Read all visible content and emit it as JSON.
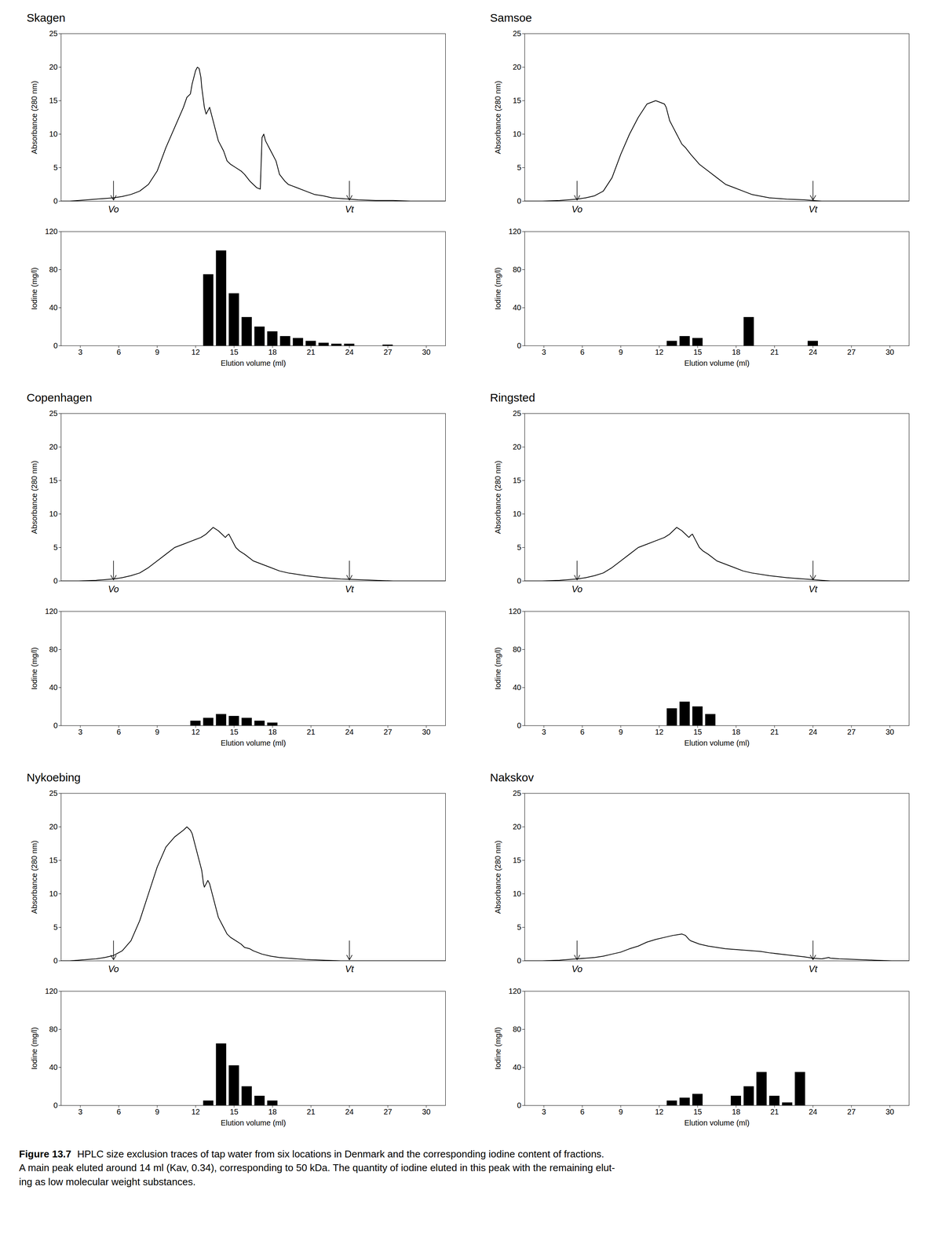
{
  "caption_title": "Figure 13.7",
  "caption": "HPLC size exclusion traces of tap water from six locations in Denmark and the corresponding iodine content of fractions.\nA main peak eluted around 14 ml (Kav, 0.34), corresponding to 50 kDa. The quantity of iodine eluted in this peak with the remaining elut-\ning as low molecular weight substances.",
  "chart_data": [
    {
      "type": "line",
      "title": "Skagen",
      "color": "#000000",
      "x": [
        6.0,
        6.5,
        7.0,
        7.5,
        8.0,
        8.5,
        9.0,
        9.5,
        10.0,
        10.5,
        11.0,
        11.5,
        12.0,
        12.5,
        13.0,
        13.2,
        13.4,
        13.5,
        13.6,
        13.7,
        13.8,
        13.9,
        14.0,
        14.05,
        14.1,
        14.15,
        14.2,
        14.3,
        14.4,
        14.5,
        14.6,
        14.7,
        14.8,
        14.9,
        15.0,
        15.1,
        15.2,
        15.3,
        15.5,
        15.7,
        16.0,
        16.3,
        16.5,
        16.8,
        17.0,
        17.2,
        17.4,
        17.5,
        17.6,
        17.7,
        17.8,
        17.9,
        18.0,
        18.1,
        18.2,
        18.3,
        18.4,
        18.5,
        18.8,
        19.0,
        19.5,
        20.0,
        20.5,
        21.0,
        21.5,
        22.0,
        22.5,
        23.0,
        24.0,
        25.0,
        26.0,
        27.0,
        28.0
      ],
      "values": [
        0.0,
        0.0,
        0.1,
        0.2,
        0.3,
        0.4,
        0.5,
        0.7,
        1.0,
        1.5,
        2.5,
        4.5,
        8.0,
        11.0,
        14.0,
        15.5,
        16.0,
        17.5,
        18.5,
        19.5,
        20.0,
        19.8,
        18.5,
        17.0,
        16.0,
        15.0,
        14.0,
        13.0,
        13.5,
        14.0,
        13.0,
        12.0,
        11.0,
        10.0,
        9.0,
        8.5,
        8.0,
        7.5,
        6.0,
        5.5,
        5.0,
        4.5,
        4.0,
        3.0,
        2.5,
        2.0,
        1.8,
        9.5,
        10.0,
        9.0,
        8.5,
        8.0,
        7.5,
        7.0,
        6.5,
        6.0,
        5.0,
        4.0,
        3.0,
        2.5,
        2.0,
        1.5,
        1.0,
        0.8,
        0.5,
        0.4,
        0.3,
        0.2,
        0.1,
        0.1,
        0.0,
        0.0,
        0.0
      ],
      "xlim": [
        6,
        28
      ],
      "tick_labels": "y",
      "ylim": [
        0,
        25
      ],
      "yticks": [
        0,
        5,
        10,
        15,
        20,
        25
      ],
      "ylabel": "Absorbance (280 nm)",
      "annotations": [
        {
          "x": 9.0,
          "y": 3.0,
          "y_end": 0.15,
          "text": "Vo"
        },
        {
          "x": 22.5,
          "y": 3.0,
          "y_end": 0.15,
          "text": "Vt"
        }
      ]
    },
    {
      "type": "bar",
      "color": "#000000",
      "x": [
        12,
        13,
        14,
        15,
        16,
        17,
        18,
        19,
        20,
        21,
        22,
        23,
        24,
        27
      ],
      "values": [
        0,
        75,
        100,
        55,
        30,
        20,
        15,
        10,
        8,
        5,
        3,
        2,
        2,
        1
      ],
      "xlim": [
        1.5,
        31.5
      ],
      "xticks": [
        3,
        6,
        9,
        12,
        15,
        18,
        21,
        24,
        27,
        30
      ],
      "xlabel": "Elution volume (ml)",
      "ylim": [
        0,
        120
      ],
      "yticks": [
        0,
        40,
        80,
        120
      ],
      "ylabel": "Iodine (mg/l)"
    },
    {
      "type": "line",
      "title": "Samsoe",
      "color": "#000000",
      "x": [
        6.0,
        7.0,
        8.0,
        9.0,
        9.5,
        10.0,
        10.5,
        11.0,
        11.5,
        12.0,
        12.5,
        13.0,
        13.5,
        14.0,
        14.1,
        14.2,
        14.3,
        14.5,
        14.7,
        14.9,
        15.0,
        15.2,
        15.5,
        16.0,
        16.5,
        17.0,
        17.5,
        18.0,
        18.5,
        19.0,
        20.0,
        21.0,
        22.0,
        22.5,
        23.0,
        23.5,
        24.0,
        25.0,
        26.0,
        27.0,
        28.0
      ],
      "values": [
        0.0,
        0.0,
        0.1,
        0.3,
        0.5,
        0.8,
        1.5,
        3.5,
        7.0,
        10.0,
        12.5,
        14.5,
        15.0,
        14.5,
        14.0,
        13.0,
        12.0,
        11.0,
        10.0,
        9.0,
        8.5,
        8.0,
        7.0,
        5.5,
        4.5,
        3.5,
        2.5,
        2.0,
        1.5,
        1.0,
        0.5,
        0.3,
        0.2,
        0.1,
        0.0,
        0.0,
        0.0,
        0.0,
        0.0,
        0.0,
        0.0
      ],
      "xlim": [
        6,
        28
      ],
      "tick_labels": "y",
      "ylim": [
        0,
        25
      ],
      "yticks": [
        0,
        5,
        10,
        15,
        20,
        25
      ],
      "ylabel": "Absorbance (280 nm)",
      "annotations": [
        {
          "x": 9.0,
          "y": 3.0,
          "y_end": 0.15,
          "text": "Vo"
        },
        {
          "x": 22.5,
          "y": 3.0,
          "y_end": 0.15,
          "text": "Vt"
        }
      ]
    },
    {
      "type": "bar",
      "color": "#000000",
      "x": [
        12,
        13,
        14,
        15,
        19,
        24
      ],
      "values": [
        0,
        5,
        10,
        8,
        30,
        5
      ],
      "xlim": [
        1.5,
        31.5
      ],
      "xticks": [
        3,
        6,
        9,
        12,
        15,
        18,
        21,
        24,
        27,
        30
      ],
      "xlabel": "Elution volume (ml)",
      "ylim": [
        0,
        120
      ],
      "yticks": [
        0,
        40,
        80,
        120
      ],
      "ylabel": "Iodine (mg/l)"
    },
    {
      "type": "line",
      "title": "Copenhagen",
      "color": "#000000",
      "x": [
        6.0,
        7.0,
        8.0,
        8.5,
        9.0,
        9.5,
        10.0,
        10.5,
        11.0,
        11.5,
        12.0,
        12.5,
        13.0,
        13.5,
        14.0,
        14.3,
        14.5,
        14.7,
        15.0,
        15.2,
        15.4,
        15.5,
        15.6,
        15.7,
        15.8,
        15.9,
        16.0,
        16.2,
        16.5,
        17.0,
        17.5,
        18.0,
        18.5,
        19.0,
        20.0,
        21.0,
        22.0,
        23.0,
        24.0,
        25.0,
        26.0,
        27.0,
        28.0
      ],
      "values": [
        0.0,
        0.0,
        0.1,
        0.2,
        0.3,
        0.5,
        0.8,
        1.2,
        2.0,
        3.0,
        4.0,
        5.0,
        5.5,
        6.0,
        6.5,
        7.0,
        7.5,
        8.0,
        7.5,
        7.0,
        6.5,
        6.8,
        7.0,
        6.5,
        6.0,
        5.5,
        5.0,
        4.5,
        4.0,
        3.0,
        2.5,
        2.0,
        1.5,
        1.2,
        0.8,
        0.5,
        0.3,
        0.2,
        0.1,
        0.0,
        0.0,
        0.0,
        0.0
      ],
      "xlim": [
        6,
        28
      ],
      "tick_labels": "y",
      "ylim": [
        0,
        25
      ],
      "yticks": [
        0,
        5,
        10,
        15,
        20,
        25
      ],
      "ylabel": "Absorbance (280 nm)",
      "annotations": [
        {
          "x": 9.0,
          "y": 3.0,
          "y_end": 0.15,
          "text": "Vo"
        },
        {
          "x": 22.5,
          "y": 3.0,
          "y_end": 0.15,
          "text": "Vt"
        }
      ]
    },
    {
      "type": "bar",
      "color": "#000000",
      "x": [
        12,
        13,
        14,
        15,
        16,
        17,
        18
      ],
      "values": [
        5,
        8,
        12,
        10,
        8,
        5,
        3
      ],
      "xlim": [
        1.5,
        31.5
      ],
      "xticks": [
        3,
        6,
        9,
        12,
        15,
        18,
        21,
        24,
        27,
        30
      ],
      "xlabel": "Elution volume (ml)",
      "ylim": [
        0,
        120
      ],
      "yticks": [
        0,
        40,
        80,
        120
      ],
      "ylabel": "Iodine (mg/l)"
    },
    {
      "type": "line",
      "title": "Ringsted",
      "color": "#000000",
      "x": [
        6.0,
        7.0,
        8.0,
        8.5,
        9.0,
        9.5,
        10.0,
        10.5,
        11.0,
        11.5,
        12.0,
        12.5,
        13.0,
        13.5,
        14.0,
        14.3,
        14.5,
        14.7,
        15.0,
        15.2,
        15.4,
        15.5,
        15.6,
        15.7,
        15.8,
        15.9,
        16.0,
        16.2,
        16.5,
        17.0,
        17.5,
        18.0,
        18.5,
        19.0,
        20.0,
        21.0,
        22.0,
        22.5,
        23.0,
        23.5,
        24.0,
        25.0,
        26.0,
        27.0,
        28.0
      ],
      "values": [
        0.0,
        0.0,
        0.1,
        0.2,
        0.3,
        0.5,
        0.8,
        1.2,
        2.0,
        3.0,
        4.0,
        5.0,
        5.5,
        6.0,
        6.5,
        7.0,
        7.5,
        8.0,
        7.5,
        7.0,
        6.5,
        6.8,
        7.0,
        6.5,
        6.0,
        5.5,
        5.0,
        4.5,
        4.0,
        3.0,
        2.5,
        2.0,
        1.5,
        1.2,
        0.8,
        0.5,
        0.3,
        0.2,
        0.1,
        0.0,
        0.0,
        0.0,
        0.0,
        0.0,
        0.0
      ],
      "xlim": [
        6,
        28
      ],
      "tick_labels": "y",
      "ylim": [
        0,
        25
      ],
      "yticks": [
        0,
        5,
        10,
        15,
        20,
        25
      ],
      "ylabel": "Absorbance (280 nm)",
      "annotations": [
        {
          "x": 9.0,
          "y": 3.0,
          "y_end": 0.15,
          "text": "Vo"
        },
        {
          "x": 22.5,
          "y": 3.0,
          "y_end": 0.15,
          "text": "Vt"
        }
      ]
    },
    {
      "type": "bar",
      "color": "#000000",
      "x": [
        13,
        14,
        15,
        16
      ],
      "values": [
        18,
        25,
        20,
        12
      ],
      "xlim": [
        1.5,
        31.5
      ],
      "xticks": [
        3,
        6,
        9,
        12,
        15,
        18,
        21,
        24,
        27,
        30
      ],
      "xlabel": "Elution volume (ml)",
      "ylim": [
        0,
        120
      ],
      "yticks": [
        0,
        40,
        80,
        120
      ],
      "ylabel": "Iodine (mg/l)"
    },
    {
      "type": "line",
      "title": "Nykoebing",
      "color": "#000000",
      "x": [
        6.0,
        6.5,
        7.0,
        7.5,
        8.0,
        8.5,
        9.0,
        9.5,
        10.0,
        10.5,
        11.0,
        11.5,
        12.0,
        12.5,
        13.0,
        13.2,
        13.4,
        13.5,
        13.6,
        13.7,
        13.8,
        13.9,
        14.0,
        14.05,
        14.1,
        14.15,
        14.2,
        14.3,
        14.4,
        14.5,
        14.6,
        14.7,
        14.8,
        14.9,
        15.0,
        15.1,
        15.2,
        15.3,
        15.5,
        15.7,
        16.0,
        16.3,
        16.5,
        16.8,
        17.0,
        17.5,
        18.0,
        18.5,
        19.0,
        19.5,
        20.0,
        21.0,
        22.0,
        22.5,
        23.0,
        23.5,
        24.0,
        25.0,
        26.0,
        27.0,
        28.0
      ],
      "values": [
        0.0,
        0.0,
        0.1,
        0.2,
        0.3,
        0.5,
        0.8,
        1.5,
        3.0,
        6.0,
        10.0,
        14.0,
        17.0,
        18.5,
        19.5,
        20.0,
        19.5,
        19.0,
        18.0,
        17.0,
        16.0,
        15.0,
        14.0,
        13.5,
        12.5,
        11.5,
        11.0,
        11.5,
        12.0,
        11.5,
        10.5,
        9.5,
        8.5,
        7.5,
        6.5,
        6.0,
        5.5,
        5.0,
        4.0,
        3.5,
        3.0,
        2.5,
        2.0,
        1.8,
        1.5,
        1.0,
        0.7,
        0.5,
        0.4,
        0.3,
        0.2,
        0.1,
        0.0,
        0.0,
        0.0,
        0.0,
        0.0,
        0.0,
        0.0,
        0.0,
        0.0
      ],
      "xlim": [
        6,
        28
      ],
      "tick_labels": "y",
      "ylim": [
        0,
        25
      ],
      "yticks": [
        0,
        5,
        10,
        15,
        20,
        25
      ],
      "ylabel": "Absorbance (280 nm)",
      "annotations": [
        {
          "x": 9.0,
          "y": 3.0,
          "y_end": 0.15,
          "text": "Vo"
        },
        {
          "x": 22.5,
          "y": 3.0,
          "y_end": 0.15,
          "text": "Vt"
        }
      ]
    },
    {
      "type": "bar",
      "color": "#000000",
      "x": [
        13,
        14,
        15,
        16,
        17,
        18
      ],
      "values": [
        5,
        65,
        42,
        20,
        10,
        5
      ],
      "xlim": [
        1.5,
        31.5
      ],
      "xticks": [
        3,
        6,
        9,
        12,
        15,
        18,
        21,
        24,
        27,
        30
      ],
      "xlabel": "Elution volume (ml)",
      "ylim": [
        0,
        120
      ],
      "yticks": [
        0,
        40,
        80,
        120
      ],
      "ylabel": "Iodine (mg/l)"
    },
    {
      "type": "line",
      "title": "Nakskov",
      "color": "#000000",
      "x": [
        6.0,
        7.0,
        8.0,
        8.5,
        9.0,
        9.5,
        10.0,
        10.5,
        11.0,
        11.5,
        12.0,
        12.5,
        13.0,
        13.5,
        14.0,
        14.5,
        15.0,
        15.2,
        15.3,
        15.4,
        15.5,
        15.7,
        16.0,
        16.5,
        17.0,
        17.5,
        18.0,
        18.5,
        19.0,
        19.5,
        20.0,
        21.0,
        22.0,
        22.5,
        23.0,
        23.2,
        23.4,
        23.5,
        24.0,
        25.0,
        26.0,
        27.0,
        28.0
      ],
      "values": [
        0.0,
        0.0,
        0.1,
        0.2,
        0.3,
        0.4,
        0.5,
        0.7,
        1.0,
        1.3,
        1.8,
        2.2,
        2.8,
        3.2,
        3.5,
        3.8,
        4.0,
        3.8,
        3.5,
        3.2,
        3.0,
        2.8,
        2.5,
        2.2,
        2.0,
        1.8,
        1.7,
        1.6,
        1.5,
        1.4,
        1.2,
        0.9,
        0.6,
        0.4,
        0.3,
        0.4,
        0.5,
        0.4,
        0.3,
        0.2,
        0.1,
        0.0,
        0.0
      ],
      "xlim": [
        6,
        28
      ],
      "tick_labels": "y",
      "ylim": [
        0,
        25
      ],
      "yticks": [
        0,
        5,
        10,
        15,
        20,
        25
      ],
      "ylabel": "Absorbance (280 nm)",
      "annotations": [
        {
          "x": 9.0,
          "y": 3.0,
          "y_end": 0.15,
          "text": "Vo"
        },
        {
          "x": 22.5,
          "y": 3.0,
          "y_end": 0.15,
          "text": "Vt"
        }
      ]
    },
    {
      "type": "bar",
      "color": "#000000",
      "x": [
        13,
        14,
        15,
        18,
        19,
        20,
        21,
        22,
        23
      ],
      "values": [
        5,
        8,
        12,
        10,
        20,
        35,
        10,
        3,
        35
      ],
      "xlim": [
        1.5,
        31.5
      ],
      "xticks": [
        3,
        6,
        9,
        12,
        15,
        18,
        21,
        24,
        27,
        30
      ],
      "xlabel": "Elution volume (ml)",
      "ylim": [
        0,
        120
      ],
      "yticks": [
        0,
        40,
        80,
        120
      ],
      "ylabel": "Iodine (mg/l)"
    }
  ]
}
